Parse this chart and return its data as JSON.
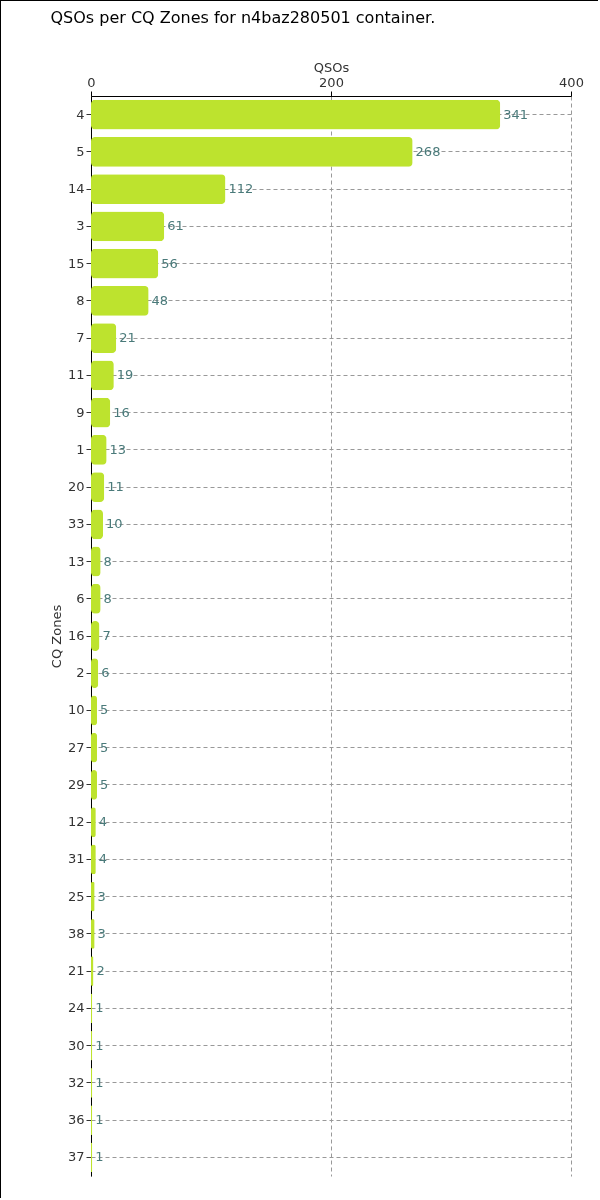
{
  "chart_data": {
    "type": "bar",
    "orientation": "horizontal",
    "title": "QSOs per CQ Zones for n4baz280501 container.",
    "xlabel": "QSOs",
    "ylabel": "CQ Zones",
    "categories": [
      "4",
      "5",
      "14",
      "3",
      "15",
      "8",
      "7",
      "11",
      "9",
      "1",
      "20",
      "33",
      "13",
      "6",
      "16",
      "2",
      "10",
      "27",
      "29",
      "12",
      "31",
      "25",
      "38",
      "21",
      "24",
      "30",
      "32",
      "36",
      "37"
    ],
    "values": [
      341,
      268,
      112,
      61,
      56,
      48,
      21,
      19,
      16,
      13,
      11,
      10,
      8,
      8,
      7,
      6,
      5,
      5,
      5,
      4,
      4,
      3,
      3,
      2,
      1,
      1,
      1,
      1,
      1
    ],
    "color": "#bde32e",
    "xlim": [
      0,
      400
    ],
    "xticks": [
      0,
      200,
      400
    ],
    "grid": true,
    "data_labels": true
  }
}
